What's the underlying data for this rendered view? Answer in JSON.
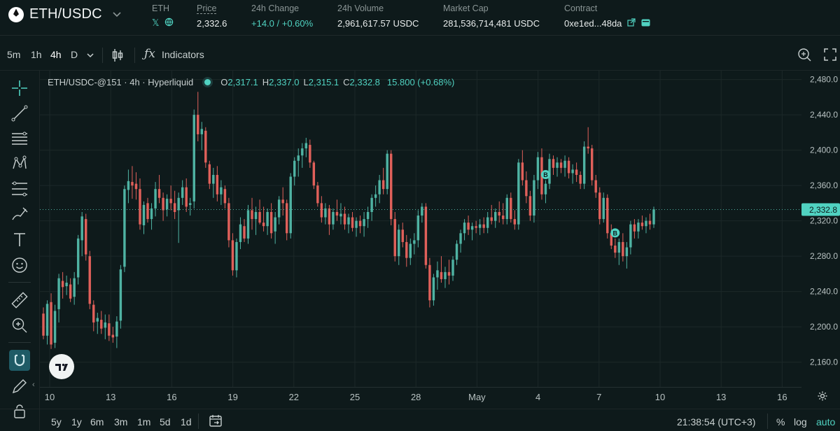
{
  "header": {
    "pair": "ETH/USDC",
    "token": {
      "label": "ETH"
    },
    "price": {
      "label": "Price",
      "value": "2,332.6"
    },
    "change": {
      "label": "24h Change",
      "value": "+14.0 / +0.60%"
    },
    "volume": {
      "label": "24h Volume",
      "value": "2,961,617.57 USDC"
    },
    "mcap": {
      "label": "Market Cap",
      "value": "281,536,714,481 USDC"
    },
    "contract": {
      "label": "Contract",
      "value": "0xe1ed...48da"
    }
  },
  "toolbar": {
    "timeframes": [
      "5m",
      "1h",
      "4h",
      "D"
    ],
    "active_timeframe": "4h",
    "indicators_label": "Indicators"
  },
  "legend": {
    "symbol": "ETH/USDC-@151 · 4h · Hyperliquid",
    "o_label": "O",
    "o": "2,317.1",
    "h_label": "H",
    "h": "2,337.0",
    "l_label": "L",
    "l": "2,315.1",
    "c_label": "C",
    "c": "2,332.8",
    "change": "15.800 (+0.68%)"
  },
  "price_tag": "2,332.8",
  "trade_marker": "B",
  "bottom": {
    "ranges": [
      "5y",
      "1y",
      "6m",
      "3m",
      "1m",
      "5d",
      "1d"
    ],
    "clock": "21:38:54 (UTC+3)",
    "percent": "%",
    "log": "log",
    "auto": "auto"
  },
  "chart_data": {
    "type": "candlestick",
    "y_ticks": [
      2160,
      2200,
      2240,
      2280,
      2320,
      2360,
      2400,
      2440,
      2480
    ],
    "y_tick_labels": [
      "2,160.0",
      "2,200.0",
      "2,240.0",
      "2,280.0",
      "2,320.0",
      "2,360.0",
      "2,400.0",
      "2,440.0",
      "2,480.0"
    ],
    "x_tick_labels": [
      "10",
      "13",
      "16",
      "19",
      "22",
      "25",
      "28",
      "May",
      "4",
      "7",
      "10",
      "13",
      "16"
    ],
    "ylim": [
      2132,
      2490
    ],
    "last_price": 2332.8,
    "candles": [
      [
        2215,
        2222,
        2186,
        2190
      ],
      [
        2190,
        2230,
        2180,
        2226
      ],
      [
        2228,
        2238,
        2175,
        2180
      ],
      [
        2182,
        2225,
        2176,
        2218
      ],
      [
        2220,
        2260,
        2205,
        2255
      ],
      [
        2252,
        2262,
        2232,
        2245
      ],
      [
        2246,
        2258,
        2236,
        2250
      ],
      [
        2248,
        2255,
        2228,
        2232
      ],
      [
        2234,
        2262,
        2225,
        2255
      ],
      [
        2256,
        2304,
        2248,
        2300
      ],
      [
        2298,
        2330,
        2280,
        2325
      ],
      [
        2322,
        2328,
        2275,
        2282
      ],
      [
        2280,
        2286,
        2220,
        2226
      ],
      [
        2225,
        2230,
        2195,
        2205
      ],
      [
        2206,
        2216,
        2192,
        2210
      ],
      [
        2208,
        2218,
        2192,
        2198
      ],
      [
        2199,
        2214,
        2186,
        2205
      ],
      [
        2204,
        2214,
        2184,
        2190
      ],
      [
        2191,
        2200,
        2182,
        2188
      ],
      [
        2189,
        2212,
        2176,
        2206
      ],
      [
        2207,
        2270,
        2198,
        2265
      ],
      [
        2268,
        2360,
        2262,
        2356
      ],
      [
        2355,
        2378,
        2340,
        2365
      ],
      [
        2364,
        2382,
        2345,
        2360
      ],
      [
        2362,
        2375,
        2344,
        2356
      ],
      [
        2356,
        2368,
        2310,
        2316
      ],
      [
        2315,
        2342,
        2305,
        2338
      ],
      [
        2340,
        2346,
        2318,
        2322
      ],
      [
        2322,
        2340,
        2310,
        2334
      ],
      [
        2334,
        2364,
        2325,
        2356
      ],
      [
        2356,
        2372,
        2340,
        2346
      ],
      [
        2346,
        2352,
        2320,
        2332
      ],
      [
        2333,
        2350,
        2325,
        2345
      ],
      [
        2345,
        2360,
        2332,
        2340
      ],
      [
        2340,
        2354,
        2322,
        2330
      ],
      [
        2332,
        2352,
        2295,
        2346
      ],
      [
        2346,
        2366,
        2338,
        2358
      ],
      [
        2358,
        2368,
        2330,
        2336
      ],
      [
        2338,
        2346,
        2326,
        2340
      ],
      [
        2342,
        2446,
        2334,
        2440
      ],
      [
        2440,
        2466,
        2410,
        2418
      ],
      [
        2418,
        2432,
        2400,
        2424
      ],
      [
        2422,
        2426,
        2380,
        2386
      ],
      [
        2384,
        2388,
        2356,
        2362
      ],
      [
        2362,
        2380,
        2346,
        2372
      ],
      [
        2372,
        2382,
        2342,
        2350
      ],
      [
        2350,
        2366,
        2338,
        2358
      ],
      [
        2356,
        2360,
        2334,
        2340
      ],
      [
        2340,
        2346,
        2290,
        2298
      ],
      [
        2298,
        2306,
        2258,
        2264
      ],
      [
        2264,
        2300,
        2256,
        2296
      ],
      [
        2296,
        2324,
        2288,
        2316
      ],
      [
        2314,
        2322,
        2296,
        2300
      ],
      [
        2300,
        2338,
        2294,
        2332
      ],
      [
        2332,
        2346,
        2310,
        2322
      ],
      [
        2322,
        2336,
        2304,
        2330
      ],
      [
        2330,
        2344,
        2316,
        2318
      ],
      [
        2318,
        2336,
        2308,
        2314
      ],
      [
        2314,
        2334,
        2304,
        2330
      ],
      [
        2330,
        2340,
        2300,
        2306
      ],
      [
        2308,
        2330,
        2294,
        2324
      ],
      [
        2324,
        2348,
        2316,
        2344
      ],
      [
        2344,
        2358,
        2326,
        2340
      ],
      [
        2340,
        2344,
        2298,
        2306
      ],
      [
        2306,
        2374,
        2300,
        2370
      ],
      [
        2370,
        2392,
        2360,
        2388
      ],
      [
        2388,
        2402,
        2370,
        2394
      ],
      [
        2394,
        2408,
        2380,
        2402
      ],
      [
        2402,
        2414,
        2392,
        2408
      ],
      [
        2406,
        2412,
        2380,
        2386
      ],
      [
        2386,
        2388,
        2356,
        2360
      ],
      [
        2360,
        2364,
        2336,
        2340
      ],
      [
        2340,
        2348,
        2318,
        2324
      ],
      [
        2324,
        2340,
        2316,
        2334
      ],
      [
        2334,
        2338,
        2304,
        2316
      ],
      [
        2316,
        2334,
        2310,
        2330
      ],
      [
        2330,
        2344,
        2320,
        2326
      ],
      [
        2325,
        2340,
        2316,
        2328
      ],
      [
        2328,
        2336,
        2310,
        2316
      ],
      [
        2316,
        2328,
        2306,
        2324
      ],
      [
        2324,
        2330,
        2308,
        2312
      ],
      [
        2312,
        2324,
        2302,
        2320
      ],
      [
        2320,
        2326,
        2306,
        2314
      ],
      [
        2314,
        2330,
        2302,
        2322
      ],
      [
        2322,
        2336,
        2312,
        2330
      ],
      [
        2330,
        2350,
        2320,
        2346
      ],
      [
        2346,
        2360,
        2336,
        2350
      ],
      [
        2350,
        2372,
        2340,
        2366
      ],
      [
        2366,
        2380,
        2350,
        2356
      ],
      [
        2356,
        2400,
        2350,
        2396
      ],
      [
        2396,
        2400,
        2315,
        2322
      ],
      [
        2322,
        2330,
        2274,
        2280
      ],
      [
        2280,
        2316,
        2270,
        2310
      ],
      [
        2310,
        2318,
        2290,
        2296
      ],
      [
        2296,
        2304,
        2268,
        2278
      ],
      [
        2278,
        2300,
        2270,
        2294
      ],
      [
        2294,
        2306,
        2282,
        2298
      ],
      [
        2298,
        2332,
        2290,
        2326
      ],
      [
        2326,
        2340,
        2318,
        2336
      ],
      [
        2336,
        2340,
        2266,
        2270
      ],
      [
        2270,
        2278,
        2222,
        2230
      ],
      [
        2230,
        2260,
        2224,
        2256
      ],
      [
        2256,
        2274,
        2242,
        2264
      ],
      [
        2262,
        2280,
        2250,
        2254
      ],
      [
        2254,
        2268,
        2244,
        2262
      ],
      [
        2262,
        2276,
        2248,
        2258
      ],
      [
        2258,
        2280,
        2252,
        2276
      ],
      [
        2276,
        2298,
        2270,
        2294
      ],
      [
        2294,
        2310,
        2284,
        2306
      ],
      [
        2306,
        2322,
        2298,
        2318
      ],
      [
        2318,
        2326,
        2304,
        2310
      ],
      [
        2310,
        2318,
        2298,
        2314
      ],
      [
        2314,
        2320,
        2306,
        2312
      ],
      [
        2312,
        2322,
        2304,
        2316
      ],
      [
        2316,
        2324,
        2306,
        2312
      ],
      [
        2312,
        2330,
        2306,
        2324
      ],
      [
        2324,
        2338,
        2316,
        2320
      ],
      [
        2320,
        2334,
        2312,
        2330
      ],
      [
        2330,
        2342,
        2318,
        2326
      ],
      [
        2326,
        2340,
        2316,
        2322
      ],
      [
        2322,
        2350,
        2316,
        2346
      ],
      [
        2346,
        2352,
        2318,
        2322
      ],
      [
        2322,
        2332,
        2310,
        2316
      ],
      [
        2316,
        2390,
        2310,
        2386
      ],
      [
        2386,
        2400,
        2360,
        2366
      ],
      [
        2366,
        2376,
        2340,
        2348
      ],
      [
        2348,
        2354,
        2320,
        2326
      ],
      [
        2326,
        2372,
        2318,
        2366
      ],
      [
        2366,
        2398,
        2356,
        2392
      ],
      [
        2392,
        2402,
        2344,
        2350
      ],
      [
        2350,
        2366,
        2340,
        2362
      ],
      [
        2362,
        2396,
        2356,
        2390
      ],
      [
        2390,
        2394,
        2372,
        2380
      ],
      [
        2380,
        2392,
        2370,
        2386
      ],
      [
        2386,
        2390,
        2374,
        2380
      ],
      [
        2380,
        2394,
        2370,
        2388
      ],
      [
        2388,
        2392,
        2368,
        2374
      ],
      [
        2374,
        2384,
        2362,
        2378
      ],
      [
        2378,
        2386,
        2364,
        2372
      ],
      [
        2372,
        2376,
        2356,
        2362
      ],
      [
        2362,
        2410,
        2356,
        2404
      ],
      [
        2404,
        2426,
        2396,
        2402
      ],
      [
        2402,
        2406,
        2360,
        2366
      ],
      [
        2366,
        2372,
        2346,
        2352
      ],
      [
        2352,
        2358,
        2316,
        2322
      ],
      [
        2322,
        2352,
        2318,
        2346
      ],
      [
        2346,
        2350,
        2300,
        2306
      ],
      [
        2306,
        2316,
        2288,
        2292
      ],
      [
        2292,
        2300,
        2278,
        2284
      ],
      [
        2284,
        2300,
        2270,
        2296
      ],
      [
        2296,
        2306,
        2274,
        2280
      ],
      [
        2280,
        2296,
        2266,
        2290
      ],
      [
        2290,
        2320,
        2282,
        2316
      ],
      [
        2316,
        2322,
        2300,
        2308
      ],
      [
        2308,
        2322,
        2300,
        2318
      ],
      [
        2318,
        2326,
        2310,
        2314
      ],
      [
        2314,
        2324,
        2306,
        2320
      ],
      [
        2320,
        2328,
        2310,
        2316
      ],
      [
        2316,
        2336,
        2312,
        2333
      ]
    ],
    "buy_markers_at_candle": [
      130,
      148
    ]
  }
}
